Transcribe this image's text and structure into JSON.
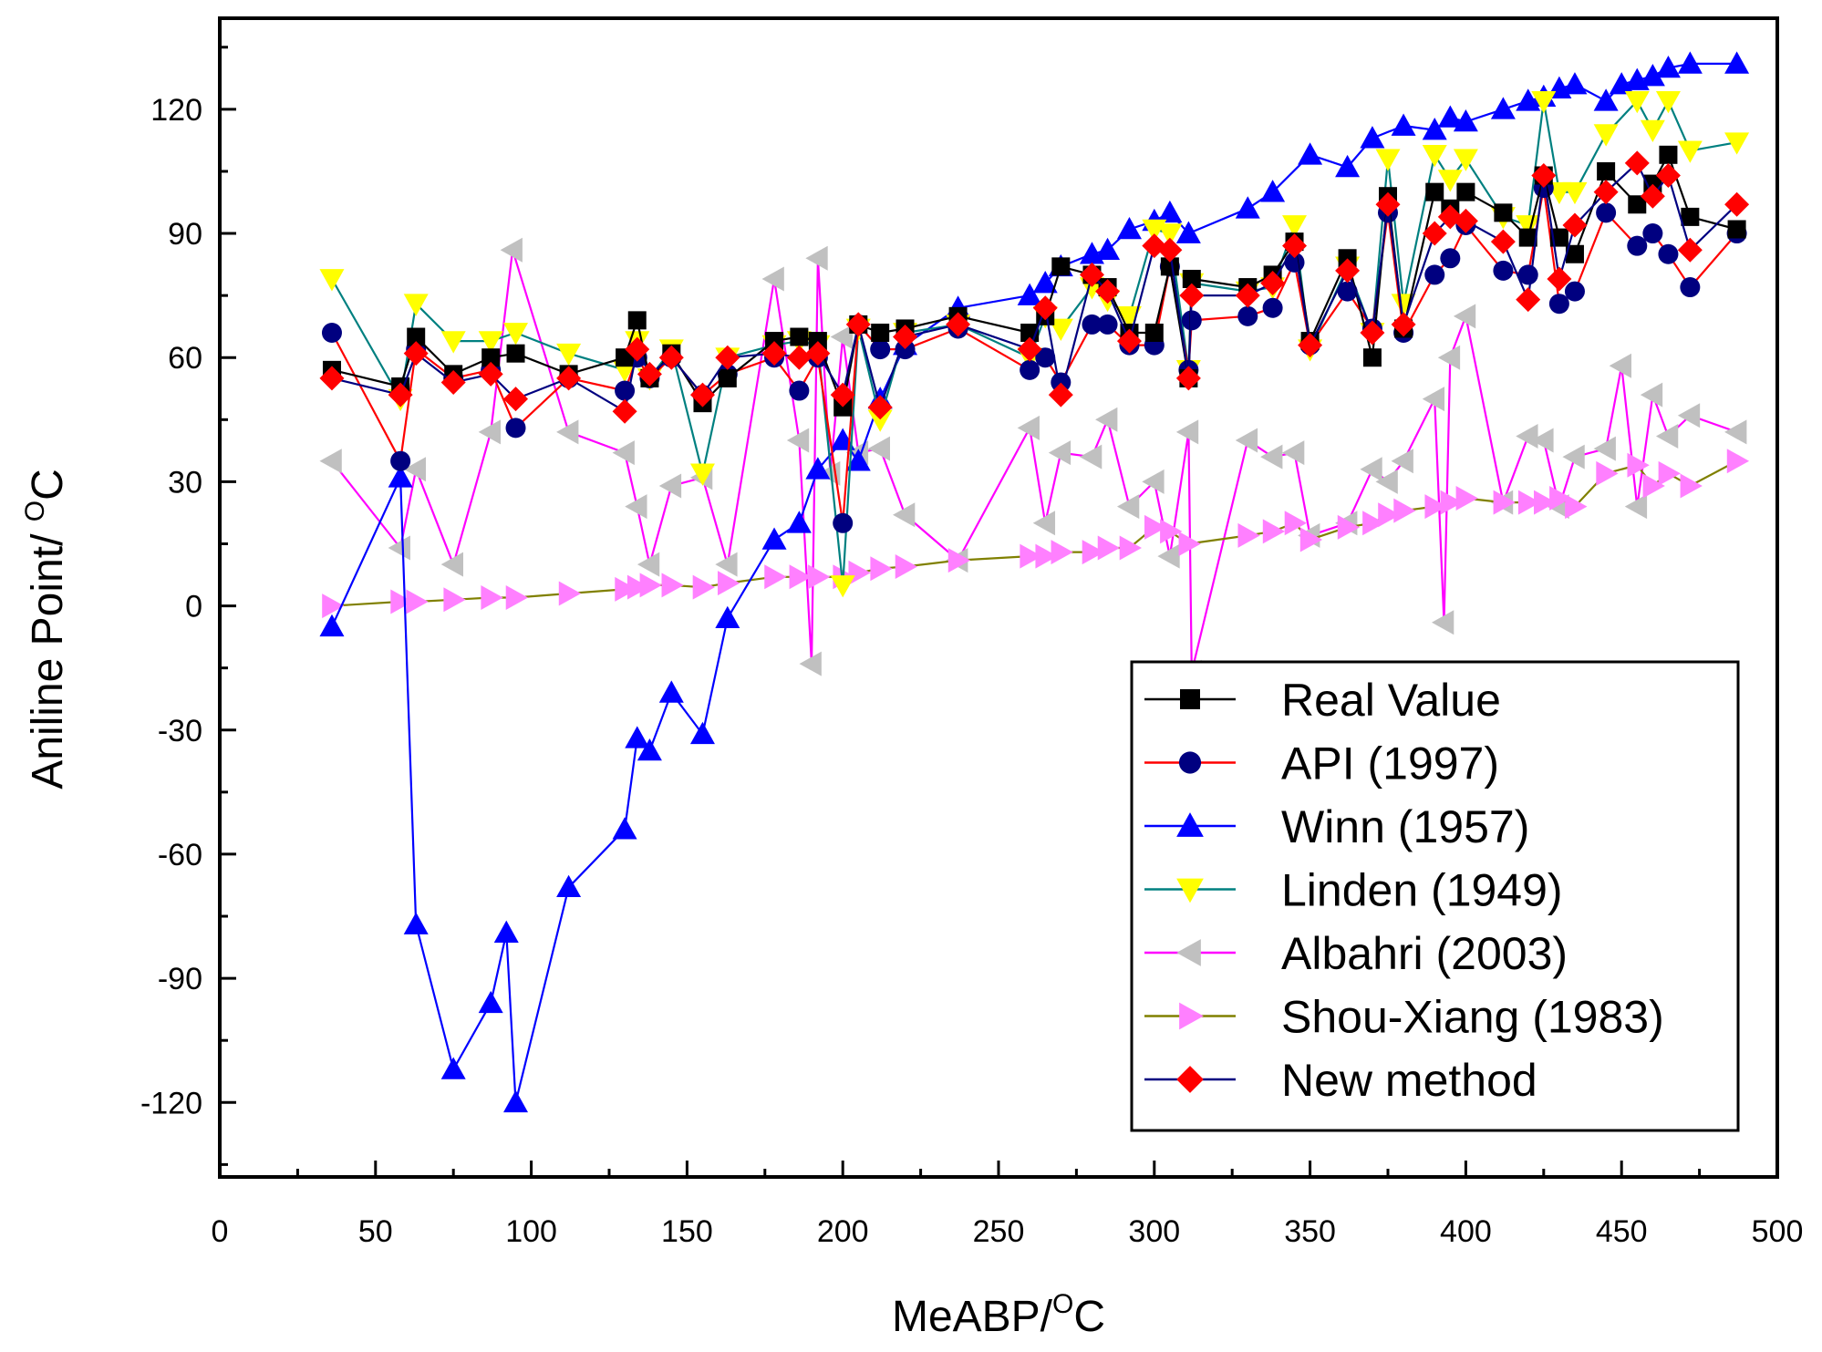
{
  "chart_data": {
    "type": "line",
    "xlabel": "MeABP/°C",
    "ylabel": "Aniline Point/ °C",
    "xlabel_parts": {
      "main": "MeABP/",
      "sup": "O",
      "unit": "C"
    },
    "ylabel_parts": {
      "main": "Aniline Point/ ",
      "sup": "O",
      "unit": "C"
    },
    "xlim": [
      0,
      500
    ],
    "ylim": [
      -138,
      142
    ],
    "xticks": [
      "0",
      "50",
      "100",
      "150",
      "200",
      "250",
      "300",
      "350",
      "400",
      "450",
      "500"
    ],
    "yticks": [
      "-120",
      "-90",
      "-60",
      "-30",
      "0",
      "30",
      "60",
      "90",
      "120"
    ],
    "grid": false,
    "legend_position": "bottom-right",
    "series": [
      {
        "name": "Real Value",
        "line_color": "#000000",
        "marker": "square",
        "marker_color": "#000000",
        "x": [
          36,
          58,
          63,
          75,
          87,
          95,
          112,
          130,
          134,
          138,
          145,
          155,
          163,
          178,
          186,
          192,
          200,
          205,
          212,
          220,
          237,
          260,
          265,
          270,
          280,
          285,
          292,
          300,
          305,
          311,
          312,
          330,
          338,
          345,
          350,
          362,
          370,
          375,
          380,
          390,
          395,
          400,
          412,
          420,
          425,
          430,
          435,
          445,
          455,
          460,
          465,
          472,
          487
        ],
        "y": [
          57,
          53,
          65,
          56,
          60,
          61,
          56,
          60,
          69,
          55,
          61,
          49,
          55,
          64,
          65,
          64,
          48,
          68,
          66,
          67,
          70,
          66,
          70,
          82,
          80,
          77,
          66,
          66,
          82,
          55,
          79,
          77,
          80,
          88,
          64,
          84,
          60,
          99,
          67,
          100,
          96,
          100,
          95,
          89,
          104,
          89,
          85,
          105,
          97,
          102,
          109,
          94,
          91
        ]
      },
      {
        "name": "API (1997)",
        "line_color": "#ff0000",
        "marker": "circle",
        "marker_color": "#000080",
        "x": [
          36,
          58,
          63,
          75,
          87,
          95,
          112,
          130,
          134,
          138,
          145,
          155,
          163,
          178,
          186,
          192,
          200,
          205,
          212,
          220,
          237,
          260,
          265,
          270,
          280,
          285,
          292,
          300,
          305,
          311,
          312,
          330,
          338,
          345,
          350,
          362,
          370,
          375,
          380,
          390,
          395,
          400,
          412,
          420,
          425,
          430,
          435,
          445,
          455,
          460,
          465,
          472,
          487
        ],
        "y": [
          66,
          35,
          62,
          55,
          57,
          43,
          55,
          52,
          60,
          55,
          60,
          51,
          56,
          60,
          52,
          60,
          20,
          68,
          62,
          62,
          67,
          57,
          60,
          54,
          68,
          68,
          63,
          63,
          82,
          57,
          69,
          70,
          72,
          83,
          63,
          76,
          67,
          95,
          66,
          80,
          84,
          92,
          81,
          80,
          101,
          73,
          76,
          95,
          87,
          90,
          85,
          77,
          90
        ]
      },
      {
        "name": "Winn (1957)",
        "line_color": "#0000ff",
        "marker": "triangle-up",
        "marker_color": "#0000ff",
        "x": [
          36,
          58,
          63,
          75,
          87,
          92,
          95,
          112,
          130,
          134,
          138,
          145,
          155,
          163,
          178,
          186,
          192,
          200,
          205,
          212,
          220,
          237,
          260,
          265,
          270,
          280,
          285,
          292,
          300,
          305,
          311,
          330,
          338,
          350,
          362,
          370,
          380,
          390,
          395,
          400,
          412,
          420,
          425,
          430,
          435,
          445,
          450,
          455,
          460,
          465,
          472,
          487
        ],
        "y": [
          -5,
          31,
          -77,
          -112,
          -96,
          -79,
          -120,
          -68,
          -54,
          -32,
          -35,
          -21,
          -31,
          -3,
          16,
          20,
          33,
          40,
          35,
          50,
          63,
          72,
          75,
          78,
          82,
          85,
          86,
          91,
          93,
          95,
          90,
          96,
          100,
          109,
          106,
          113,
          116,
          115,
          118,
          117,
          120,
          122,
          123,
          125,
          126,
          122,
          126,
          127,
          128,
          130,
          131,
          131
        ]
      },
      {
        "name": "Linden (1949)",
        "line_color": "#008080",
        "marker": "triangle-down",
        "marker_color": "#ffff00",
        "x": [
          36,
          58,
          63,
          75,
          87,
          95,
          112,
          130,
          134,
          138,
          145,
          155,
          163,
          178,
          186,
          192,
          200,
          205,
          212,
          220,
          237,
          260,
          265,
          270,
          280,
          285,
          292,
          300,
          305,
          311,
          312,
          330,
          338,
          345,
          350,
          362,
          370,
          375,
          380,
          390,
          395,
          400,
          412,
          420,
          425,
          430,
          435,
          445,
          455,
          460,
          465,
          472,
          487
        ],
        "y": [
          79,
          50,
          73,
          64,
          64,
          66,
          61,
          57,
          64,
          55,
          62,
          32,
          60,
          63,
          64,
          63,
          5,
          67,
          45,
          66,
          68,
          60,
          70,
          67,
          77,
          74,
          70,
          91,
          90,
          57,
          78,
          76,
          77,
          92,
          62,
          82,
          66,
          108,
          73,
          109,
          103,
          108,
          94,
          92,
          122,
          100,
          100,
          114,
          122,
          115,
          122,
          110,
          112
        ]
      },
      {
        "name": "Albahri (2003)",
        "line_color": "#ff00ff",
        "marker": "triangle-left",
        "marker_color": "#c0c0c0",
        "x": [
          36,
          58,
          63,
          75,
          87,
          94,
          112,
          130,
          134,
          138,
          145,
          155,
          163,
          178,
          186,
          190,
          192,
          196,
          200,
          205,
          212,
          220,
          237,
          260,
          265,
          270,
          280,
          285,
          292,
          300,
          305,
          311,
          312,
          330,
          338,
          345,
          350,
          362,
          370,
          375,
          380,
          390,
          393,
          395,
          400,
          412,
          420,
          425,
          430,
          435,
          445,
          450,
          455,
          460,
          465,
          472,
          487
        ],
        "y": [
          35,
          14,
          33,
          10,
          42,
          86,
          42,
          37,
          24,
          10,
          29,
          31,
          10,
          79,
          40,
          -14,
          84,
          32,
          65,
          37,
          38,
          22,
          11,
          43,
          20,
          37,
          36,
          45,
          24,
          30,
          12,
          42,
          -16,
          40,
          36,
          37,
          17,
          20,
          33,
          30,
          35,
          50,
          -4,
          60,
          70,
          25,
          41,
          40,
          24,
          36,
          38,
          58,
          24,
          51,
          41,
          46,
          42
        ]
      },
      {
        "name": "Shou-Xiang (1983)",
        "line_color": "#808000",
        "marker": "triangle-right",
        "marker_color": "#ff80ff",
        "x": [
          36,
          58,
          63,
          75,
          87,
          95,
          112,
          130,
          134,
          138,
          145,
          155,
          163,
          178,
          186,
          192,
          200,
          205,
          212,
          220,
          237,
          260,
          265,
          270,
          280,
          285,
          292,
          300,
          305,
          311,
          330,
          338,
          345,
          350,
          362,
          370,
          375,
          380,
          390,
          395,
          400,
          412,
          420,
          425,
          430,
          435,
          445,
          455,
          460,
          465,
          472,
          487
        ],
        "y": [
          0,
          1,
          1,
          1.5,
          2,
          2,
          3,
          4,
          4.5,
          5,
          5,
          4.5,
          5.5,
          7,
          7,
          7,
          7,
          8,
          9,
          9.5,
          11,
          12,
          12,
          13,
          13,
          14,
          14,
          19,
          18,
          15,
          17,
          18,
          20,
          16,
          19,
          20,
          22,
          23,
          24,
          25,
          26,
          25,
          25,
          25,
          26,
          24,
          32,
          34,
          29,
          32,
          29,
          35
        ]
      },
      {
        "name": "New method",
        "line_color": "#000080",
        "marker": "diamond",
        "marker_color": "#ff0000",
        "x": [
          36,
          58,
          63,
          75,
          87,
          95,
          112,
          130,
          134,
          138,
          145,
          155,
          163,
          178,
          186,
          192,
          200,
          205,
          212,
          220,
          237,
          260,
          265,
          270,
          280,
          285,
          292,
          300,
          305,
          311,
          312,
          330,
          338,
          345,
          350,
          362,
          370,
          375,
          380,
          390,
          395,
          400,
          412,
          420,
          425,
          430,
          435,
          445,
          455,
          460,
          465,
          472,
          487
        ],
        "y": [
          55,
          51,
          61,
          54,
          56,
          50,
          55,
          47,
          62,
          56,
          60,
          51,
          60,
          61,
          60,
          61,
          51,
          68,
          48,
          65,
          68,
          62,
          72,
          51,
          80,
          76,
          64,
          87,
          86,
          55,
          75,
          75,
          78,
          87,
          63,
          81,
          66,
          97,
          68,
          90,
          94,
          93,
          88,
          74,
          104,
          79,
          92,
          100,
          107,
          99,
          104,
          86,
          97
        ]
      }
    ]
  }
}
